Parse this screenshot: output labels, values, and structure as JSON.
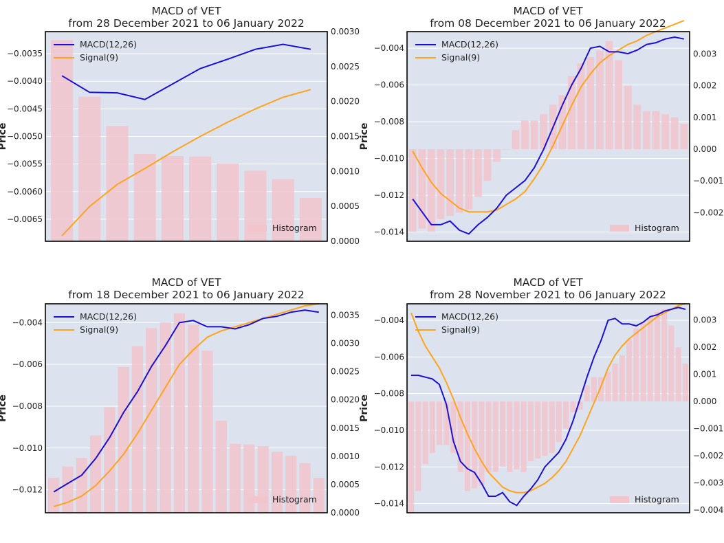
{
  "figure": {
    "description_title": "MACD of VET 2x2 subplot figure"
  },
  "colors": {
    "macd": "#1a0fd6",
    "signal": "#ffa31a",
    "hist": "#f2c4cc",
    "bg": "#dce3ee",
    "grid": "#ffffff"
  },
  "chart_data": [
    {
      "type": "line+bar",
      "title": "MACD of VET",
      "subtitle": "from 28 December 2021 to 06 January 2022",
      "ylabel": "Price",
      "legend": [
        "MACD(12,26)",
        "Signal(9)"
      ],
      "hist_legend": "Histogram",
      "n": 10,
      "ylim": [
        -0.0069,
        -0.0031
      ],
      "yticks": [
        -0.0035,
        -0.004,
        -0.0045,
        -0.005,
        -0.0055,
        -0.006,
        -0.0065
      ],
      "ytick_labels": [
        "−0.0035",
        "−0.0040",
        "−0.0045",
        "−0.0050",
        "−0.0055",
        "−0.0060",
        "−0.0065"
      ],
      "y2lim": [
        0,
        0.003
      ],
      "y2ticks": [
        0,
        0.0005,
        0.001,
        0.0015,
        0.002,
        0.0025,
        0.003
      ],
      "y2tick_labels": [
        "0.0000",
        "0.0005",
        "0.0010",
        "0.0015",
        "0.0020",
        "0.0025",
        "0.0030"
      ],
      "macd": [
        -0.0039,
        -0.0042,
        -0.00421,
        -0.00433,
        -0.00405,
        -0.00377,
        -0.0036,
        -0.00342,
        -0.00333,
        -0.00342
      ],
      "signal": [
        -0.0068,
        -0.00627,
        -0.00587,
        -0.00558,
        -0.00528,
        -0.005,
        -0.00474,
        -0.0045,
        -0.00429,
        -0.00415
      ],
      "histogram": [
        0.00288,
        0.00207,
        0.00165,
        0.00125,
        0.00122,
        0.00121,
        0.00111,
        0.00101,
        0.00089,
        0.00062
      ]
    },
    {
      "type": "line+bar",
      "title": "MACD of VET",
      "subtitle": "from 08 December 2021 to 06 January 2022",
      "ylabel": "Price",
      "legend": [
        "MACD(12,26)",
        "Signal(9)"
      ],
      "hist_legend": "Histogram",
      "n": 30,
      "ylim": [
        -0.0145,
        -0.0031
      ],
      "yticks": [
        -0.004,
        -0.006,
        -0.008,
        -0.01,
        -0.012,
        -0.014
      ],
      "ytick_labels": [
        "−0.004",
        "−0.006",
        "−0.008",
        "−0.010",
        "−0.012",
        "−0.014"
      ],
      "y2lim": [
        -0.0029,
        0.0037
      ],
      "y2ticks": [
        -0.002,
        -0.001,
        0,
        0.001,
        0.002,
        0.003
      ],
      "y2tick_labels": [
        "−0.002",
        "−0.001",
        "0.000",
        "0.001",
        "0.002",
        "0.003"
      ],
      "macd": [
        -0.0122,
        -0.0129,
        -0.0136,
        -0.0136,
        -0.0134,
        -0.0139,
        -0.0141,
        -0.0136,
        -0.0132,
        -0.0127,
        -0.012,
        -0.0116,
        -0.0112,
        -0.0105,
        -0.0095,
        -0.0083,
        -0.0071,
        -0.006,
        -0.0051,
        -0.004,
        -0.0039,
        -0.0042,
        -0.0042,
        -0.0043,
        -0.0041,
        -0.0038,
        -0.0037,
        -0.0035,
        -0.0034,
        -0.0035
      ],
      "signal": [
        -0.0096,
        -0.0105,
        -0.0113,
        -0.0119,
        -0.0123,
        -0.0127,
        -0.0129,
        -0.0129,
        -0.0129,
        -0.0128,
        -0.0125,
        -0.0122,
        -0.0118,
        -0.0111,
        -0.0103,
        -0.0093,
        -0.0082,
        -0.0071,
        -0.0061,
        -0.0054,
        -0.0048,
        -0.0044,
        -0.0041,
        -0.0038,
        -0.0036,
        -0.0033,
        -0.0031,
        -0.0029,
        -0.0027,
        -0.0025
      ],
      "histogram": [
        -0.0026,
        -0.0025,
        -0.0026,
        -0.0022,
        -0.0021,
        -0.002,
        -0.0019,
        -0.0015,
        -0.001,
        -0.0004,
        0.0,
        0.0006,
        0.0009,
        0.0009,
        0.0011,
        0.0014,
        0.0017,
        0.0023,
        0.0027,
        0.0029,
        0.0031,
        0.0034,
        0.0028,
        0.002,
        0.0014,
        0.0012,
        0.0012,
        0.0011,
        0.001,
        0.0008
      ]
    },
    {
      "type": "line+bar",
      "title": "MACD of VET",
      "subtitle": "from 18 December 2021 to 06 January 2022",
      "ylabel": "Price",
      "legend": [
        "MACD(12,26)",
        "Signal(9)"
      ],
      "hist_legend": "Histogram",
      "n": 20,
      "ylim": [
        -0.0131,
        -0.0031
      ],
      "yticks": [
        -0.004,
        -0.006,
        -0.008,
        -0.01,
        -0.012
      ],
      "ytick_labels": [
        "−0.004",
        "−0.006",
        "−0.008",
        "−0.010",
        "−0.012"
      ],
      "y2lim": [
        0,
        0.0037
      ],
      "y2ticks": [
        0,
        0.0005,
        0.001,
        0.0015,
        0.002,
        0.0025,
        0.003,
        0.0035
      ],
      "y2tick_labels": [
        "0.0000",
        "0.0005",
        "0.0010",
        "0.0015",
        "0.0020",
        "0.0025",
        "0.0030",
        "0.0035"
      ],
      "macd": [
        -0.0121,
        -0.0117,
        -0.0113,
        -0.0105,
        -0.0095,
        -0.0083,
        -0.0073,
        -0.0061,
        -0.0051,
        -0.004,
        -0.0039,
        -0.0042,
        -0.0042,
        -0.0043,
        -0.0041,
        -0.0038,
        -0.0037,
        -0.0035,
        -0.0034,
        -0.0035
      ],
      "signal": [
        -0.0128,
        -0.0126,
        -0.0123,
        -0.0118,
        -0.0111,
        -0.0103,
        -0.0093,
        -0.0082,
        -0.0071,
        -0.006,
        -0.0053,
        -0.0047,
        -0.0044,
        -0.0042,
        -0.004,
        -0.0038,
        -0.0036,
        -0.0034,
        -0.0032,
        -0.0031
      ],
      "histogram": [
        0.00062,
        0.00082,
        0.00097,
        0.00137,
        0.00187,
        0.00258,
        0.00295,
        0.00327,
        0.00337,
        0.00353,
        0.00333,
        0.00287,
        0.00163,
        0.00122,
        0.00121,
        0.00118,
        0.00108,
        0.00101,
        0.00088,
        0.00062
      ]
    },
    {
      "type": "line+bar",
      "title": "MACD of VET",
      "subtitle": "from 28 November 2021 to 06 January 2022",
      "ylabel": "Price",
      "legend": [
        "MACD(12,26)",
        "Signal(9)"
      ],
      "hist_legend": "Histogram",
      "n": 40,
      "ylim": [
        -0.0145,
        -0.0031
      ],
      "yticks": [
        -0.004,
        -0.006,
        -0.008,
        -0.01,
        -0.012,
        -0.014
      ],
      "ytick_labels": [
        "−0.004",
        "−0.006",
        "−0.008",
        "−0.010",
        "−0.012",
        "−0.014"
      ],
      "y2lim": [
        -0.0041,
        0.0036
      ],
      "y2ticks": [
        -0.004,
        -0.003,
        -0.002,
        -0.001,
        0,
        0.001,
        0.002,
        0.003
      ],
      "y2tick_labels": [
        "−0.004",
        "−0.003",
        "−0.002",
        "−0.001",
        "0.000",
        "0.001",
        "0.002",
        "0.003"
      ],
      "macd": [
        -0.007,
        -0.007,
        -0.0071,
        -0.0072,
        -0.0075,
        -0.0086,
        -0.0106,
        -0.0117,
        -0.0121,
        -0.0123,
        -0.0129,
        -0.0136,
        -0.0136,
        -0.0134,
        -0.0139,
        -0.0141,
        -0.0136,
        -0.0132,
        -0.0127,
        -0.012,
        -0.0116,
        -0.0112,
        -0.0105,
        -0.0095,
        -0.0083,
        -0.0071,
        -0.006,
        -0.0051,
        -0.004,
        -0.0039,
        -0.0042,
        -0.0042,
        -0.0043,
        -0.0041,
        -0.0038,
        -0.0037,
        -0.0035,
        -0.0034,
        -0.0033,
        -0.0034
      ],
      "signal": [
        -0.0036,
        -0.0046,
        -0.0054,
        -0.006,
        -0.0066,
        -0.0074,
        -0.0083,
        -0.0093,
        -0.0102,
        -0.011,
        -0.0117,
        -0.0123,
        -0.0127,
        -0.0131,
        -0.0133,
        -0.0134,
        -0.0134,
        -0.0133,
        -0.0131,
        -0.0129,
        -0.0126,
        -0.0122,
        -0.0117,
        -0.011,
        -0.0103,
        -0.0094,
        -0.0085,
        -0.0076,
        -0.0066,
        -0.0059,
        -0.0054,
        -0.005,
        -0.0047,
        -0.0044,
        -0.0041,
        -0.0038,
        -0.0036,
        -0.0034,
        -0.0032,
        -0.0031
      ],
      "histogram": [
        -0.0041,
        -0.0033,
        -0.0023,
        -0.0019,
        -0.0016,
        -0.0016,
        -0.0019,
        -0.0026,
        -0.0033,
        -0.0032,
        -0.0031,
        -0.0026,
        -0.0026,
        -0.0024,
        -0.0026,
        -0.0025,
        -0.0026,
        -0.0022,
        -0.0021,
        -0.002,
        -0.0019,
        -0.0015,
        -0.001,
        -0.0004,
        -0.0003,
        0.0006,
        0.0009,
        0.0009,
        0.0011,
        0.0014,
        0.0017,
        0.0023,
        0.0027,
        0.0029,
        0.0031,
        0.0033,
        0.0034,
        0.0028,
        0.002,
        0.0014
      ]
    }
  ]
}
